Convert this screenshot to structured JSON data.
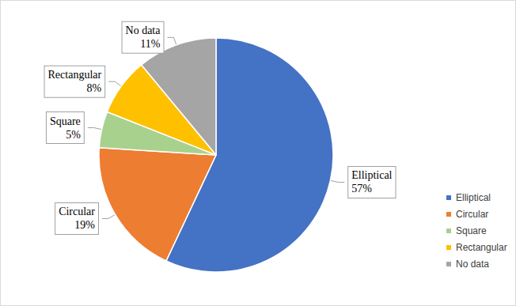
{
  "chart_data": {
    "type": "pie",
    "categories": [
      "Elliptical",
      "Circular",
      "Square",
      "Rectangular",
      "No data"
    ],
    "values": [
      57,
      19,
      5,
      8,
      11
    ],
    "value_labels": [
      "57%",
      "19%",
      "5%",
      "8%",
      "11%"
    ],
    "colors": [
      "#4472c4",
      "#ed7d31",
      "#a9d18e",
      "#ffc000",
      "#a5a5a5"
    ],
    "data_labels": true,
    "legend": "right"
  }
}
